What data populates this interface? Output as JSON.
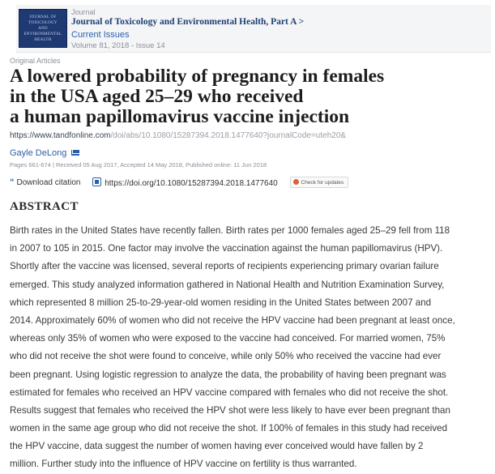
{
  "journal": {
    "kicker": "Journal",
    "title": "Journal of Toxicology and Environmental Health, Part A >",
    "current_issues": "Current Issues",
    "volume": "Volume 81, 2018 - Issue 14",
    "cover_lines": [
      "JOURNAL OF",
      "TOXICOLOGY",
      "AND",
      "ENVIRONMENTAL",
      "HEALTH"
    ]
  },
  "article": {
    "type": "Original Articles",
    "title_lines": [
      "A lowered probability of pregnancy in females",
      "in the USA aged 25–29 who received",
      "a human papillomavirus vaccine injection"
    ],
    "url_host": "https://www.tandfonline.com",
    "url_path": "/doi/abs/10.1080/15287394.2018.1477640?journalCode=uteh20&",
    "author": "Gayle DeLong",
    "pages_line": "Pages 661-674 | Received 05 Aug 2017, Accepted 14 May 2018, Published online: 11 Jun 2018",
    "download_label": "Download citation",
    "doi_link": "https://doi.org/10.1080/15287394.2018.1477640",
    "check_updates": "Check for updates"
  },
  "abstract": {
    "heading": "ABSTRACT",
    "lines": [
      "Birth rates in the United States have recently fallen. Birth rates per 1000 females aged 25–29 fell from 118",
      "in 2007 to 105 in 2015. One factor may involve the vaccination against the human papillomavirus (HPV).",
      "Shortly after the vaccine was licensed, several reports of recipients experiencing primary ovarian failure",
      "emerged. This study analyzed information gathered in National Health and Nutrition Examination Survey,",
      "which represented 8 million 25-to-29-year-old women residing in the United States between 2007 and",
      "2014. Approximately 60% of women who did not receive the HPV vaccine had been pregnant at least once,",
      "whereas only 35% of women who were exposed to the vaccine had conceived. For married women, 75%",
      "who did not receive the shot were found to conceive, while only 50% who received the vaccine had ever",
      "been pregnant. Using logistic regression to analyze the data, the probability of having been pregnant was",
      "estimated for females who received an HPV vaccine compared with females who did not receive the shot.",
      "Results suggest that females who received the HPV shot were less likely to have ever been pregnant than",
      "women in the same age group who did not receive the shot. If 100% of females in this study had received",
      "the HPV vaccine, data suggest the number of women having ever conceived would have fallen by 2",
      "million. Further study into the influence of HPV vaccine on fertility is thus warranted."
    ]
  },
  "icons": {
    "mail": "mail-icon",
    "download": "download-citation-icon",
    "doi": "doi-link-icon",
    "updates": "check-for-updates-icon"
  },
  "colors": {
    "link": "#2a5fa8",
    "journal_title": "#1d3f72",
    "title": "#1e1e1e",
    "muted": "#8a8f98"
  }
}
